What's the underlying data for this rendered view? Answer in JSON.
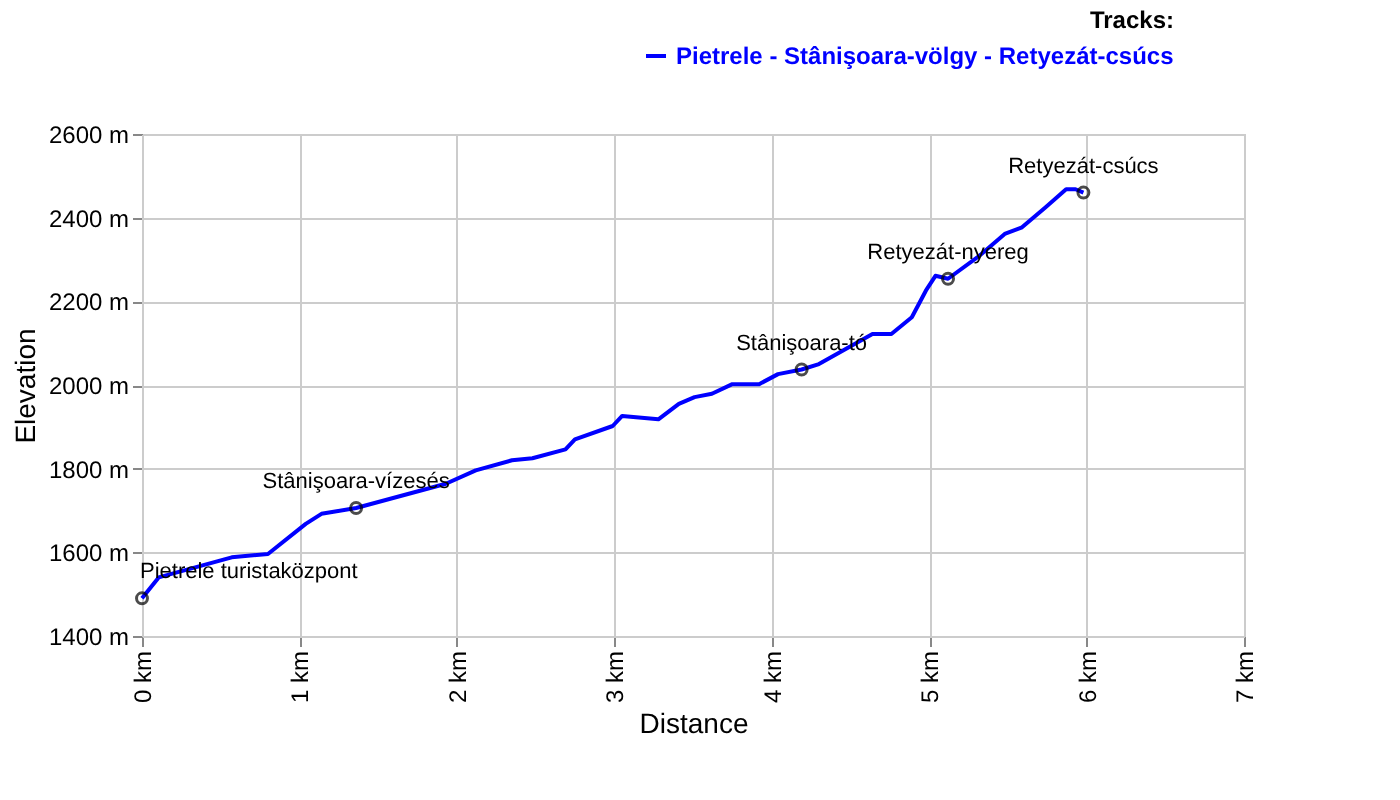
{
  "chart_data": {
    "type": "line",
    "xlabel": "Distance",
    "ylabel": "Elevation",
    "legend_title": "Tracks:",
    "legend": "top right",
    "grid": true,
    "marker": "none",
    "line_style": "solid",
    "x": [
      0,
      0.106,
      0.57,
      0.8,
      1.04,
      1.14,
      1.36,
      1.93,
      2.12,
      2.35,
      2.48,
      2.69,
      2.75,
      2.99,
      3.05,
      3.28,
      3.41,
      3.51,
      3.62,
      3.75,
      3.92,
      4.04,
      4.19,
      4.3,
      4.64,
      4.76,
      4.89,
      4.98,
      5.04,
      5.12,
      5.31,
      5.48,
      5.59,
      5.74,
      5.87,
      5.93,
      5.98
    ],
    "series": [
      {
        "name": "Pietrele - Stânişoara-völgy - Retyezát-csúcs",
        "color": "#0000ff",
        "values": [
          1490,
          1540,
          1588,
          1596,
          1668,
          1692,
          1706,
          1764,
          1796,
          1820,
          1825,
          1846,
          1870,
          1902,
          1926,
          1918,
          1955,
          1971,
          1979,
          2002,
          2002,
          2026,
          2037,
          2050,
          2122,
          2122,
          2162,
          2226,
          2261,
          2254,
          2306,
          2361,
          2377,
          2425,
          2468,
          2468,
          2460
        ]
      }
    ],
    "xlim": [
      0,
      7
    ],
    "xticks": [
      {
        "value": 0,
        "label": "0 km"
      },
      {
        "value": 1,
        "label": "1 km"
      },
      {
        "value": 2,
        "label": "2 km"
      },
      {
        "value": 3,
        "label": "3 km"
      },
      {
        "value": 4,
        "label": "4 km"
      },
      {
        "value": 5,
        "label": "5 km"
      },
      {
        "value": 6,
        "label": "6 km"
      },
      {
        "value": 7,
        "label": "7 km"
      }
    ],
    "ylim": [
      1400,
      2600
    ],
    "yticks": [
      {
        "value": 1400,
        "label": "1400 m"
      },
      {
        "value": 1600,
        "label": "1600 m"
      },
      {
        "value": 1800,
        "label": "1800 m"
      },
      {
        "value": 2000,
        "label": "2000 m"
      },
      {
        "value": 2200,
        "label": "2200 m"
      },
      {
        "value": 2400,
        "label": "2400 m"
      },
      {
        "value": 2600,
        "label": "2600 m"
      }
    ],
    "annotations": [
      {
        "text": "Pietrele turistaközpont",
        "x": 0,
        "y": 1490
      },
      {
        "text": "Stânişoara-vízesés",
        "x": 1.36,
        "y": 1706
      },
      {
        "text": "Stânişoara-tó",
        "x": 4.19,
        "y": 2037
      },
      {
        "text": "Retyezát-nyereg",
        "x": 5.12,
        "y": 2254
      },
      {
        "text": "Retyezát-csúcs",
        "x": 5.98,
        "y": 2460
      }
    ]
  }
}
